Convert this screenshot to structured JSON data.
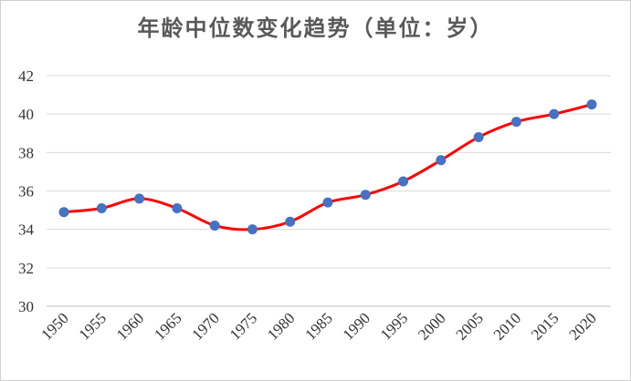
{
  "chart_data": {
    "type": "line",
    "title": "年龄中位数变化趋势（单位：岁）",
    "xlabel": "",
    "ylabel": "",
    "x": [
      1950,
      1955,
      1960,
      1965,
      1970,
      1975,
      1980,
      1985,
      1990,
      1995,
      2000,
      2005,
      2010,
      2015,
      2020
    ],
    "x_tick_labels": [
      "1950",
      "1955",
      "1960",
      "1965",
      "1970",
      "1975",
      "1980",
      "1985",
      "1990",
      "1995",
      "2000",
      "2005",
      "2010",
      "2015",
      "2020"
    ],
    "y_tick_labels": [
      "30",
      "32",
      "34",
      "36",
      "38",
      "40",
      "42"
    ],
    "y_ticks": [
      30,
      32,
      34,
      36,
      38,
      40,
      42
    ],
    "series": [
      {
        "values": [
          34.9,
          35.1,
          35.6,
          35.1,
          34.2,
          34.0,
          34.4,
          35.4,
          35.8,
          36.5,
          37.6,
          38.8,
          39.6,
          40.0,
          40.5
        ],
        "line_color": "#ff0000",
        "marker_color": "#4472c4"
      }
    ],
    "ylim": [
      30,
      42
    ],
    "grid": true,
    "smooth": true,
    "legend": "none"
  }
}
